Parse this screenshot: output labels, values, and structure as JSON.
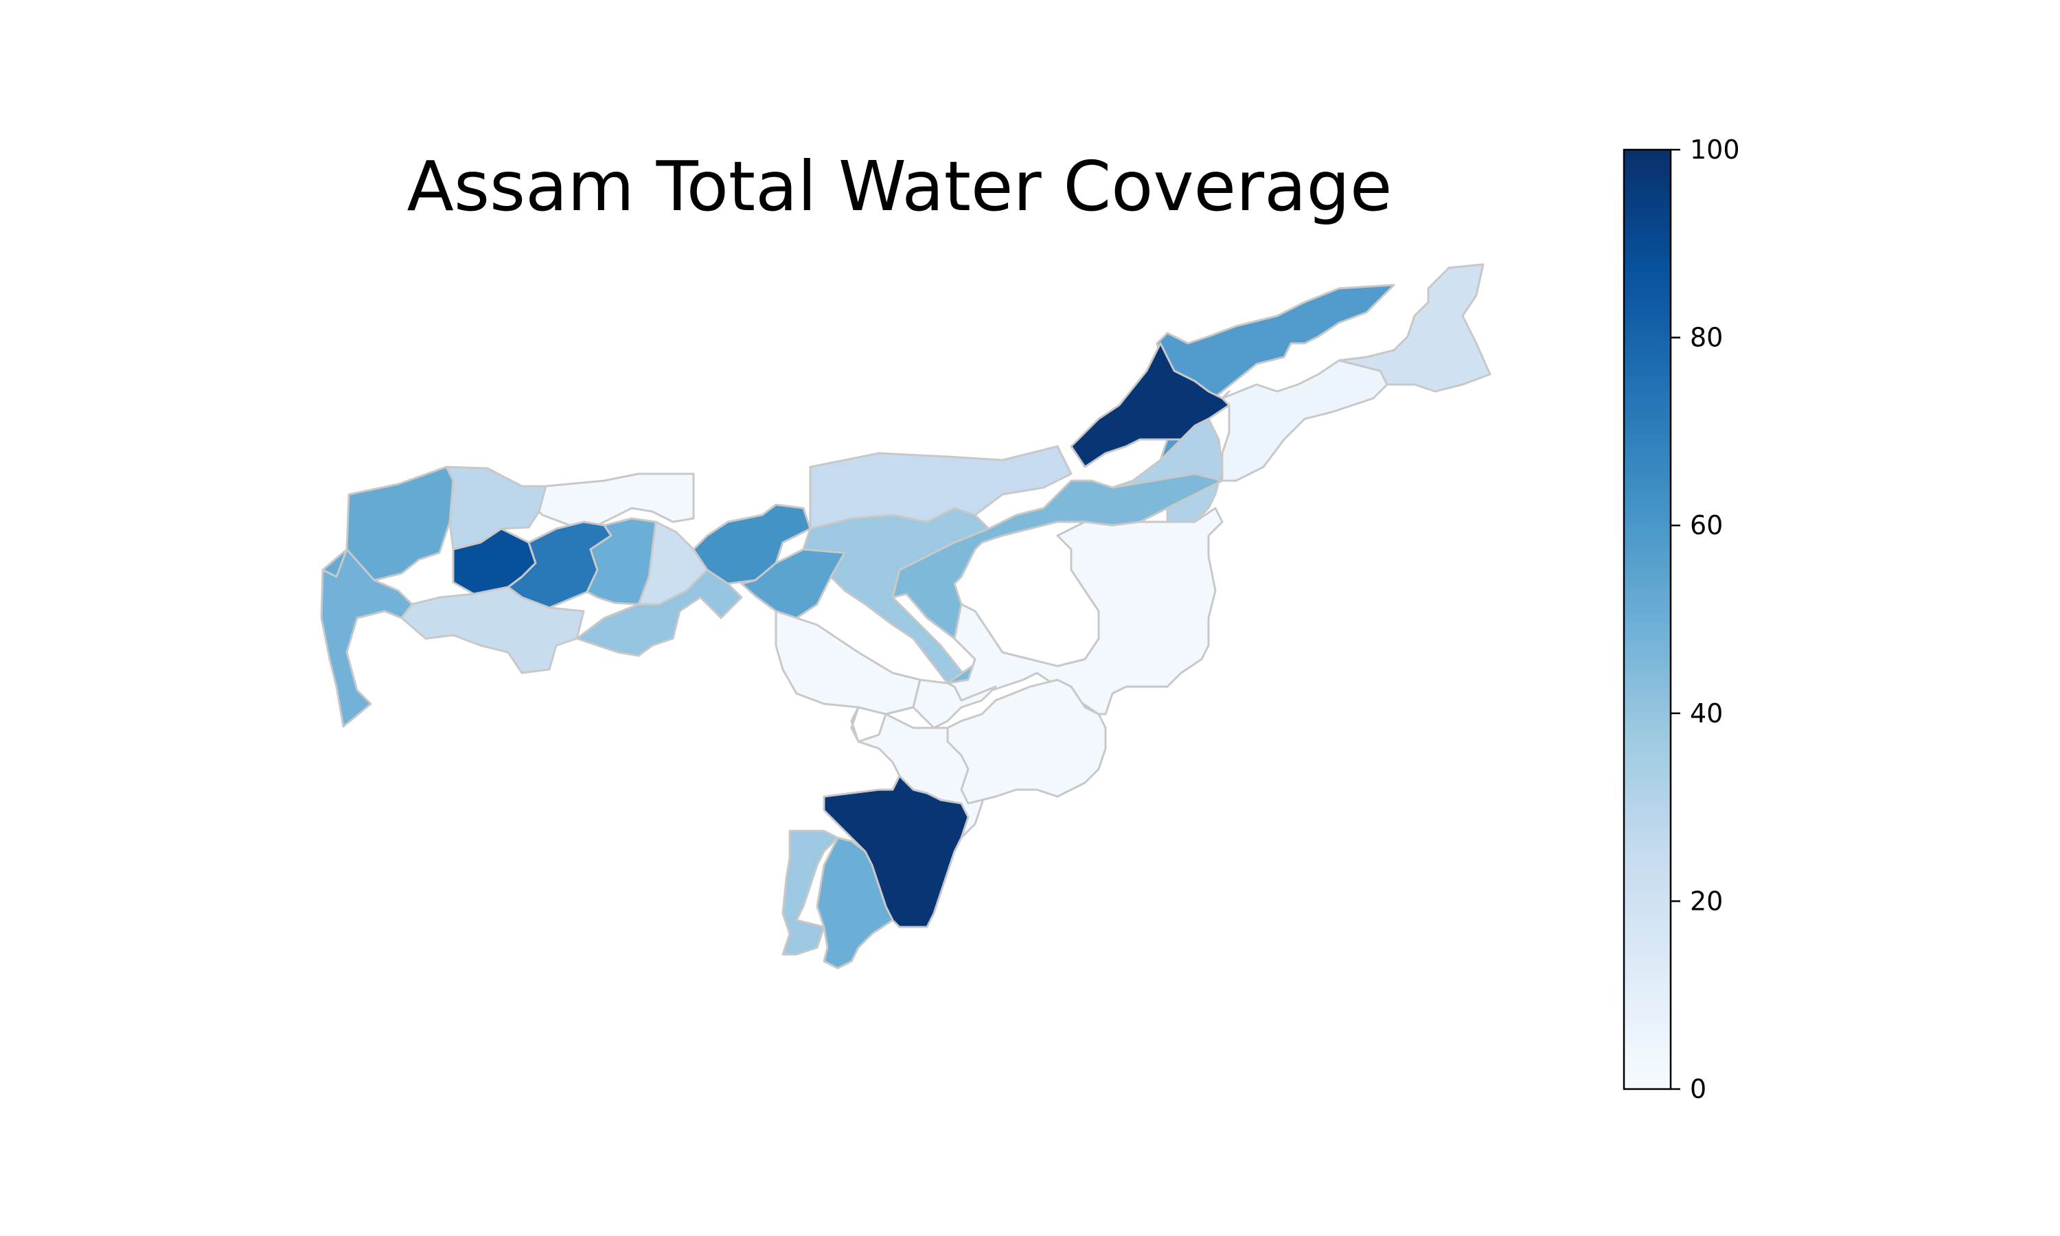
{
  "chart_data": {
    "type": "heatmap",
    "title": "Assam Total Water Coverage",
    "colormap": "Blues",
    "colorbar": {
      "min": 0,
      "max": 100,
      "ticks": [
        0,
        20,
        40,
        60,
        80,
        100
      ],
      "tick_labels": [
        "0",
        "20",
        "40",
        "60",
        "80",
        "100"
      ]
    },
    "district_values": [
      52,
      28,
      2,
      48,
      88,
      72,
      50,
      22,
      62,
      55,
      38,
      25,
      24,
      40,
      2,
      45,
      58,
      98,
      32,
      5,
      20,
      2,
      2,
      98,
      38,
      50,
      2
    ]
  }
}
